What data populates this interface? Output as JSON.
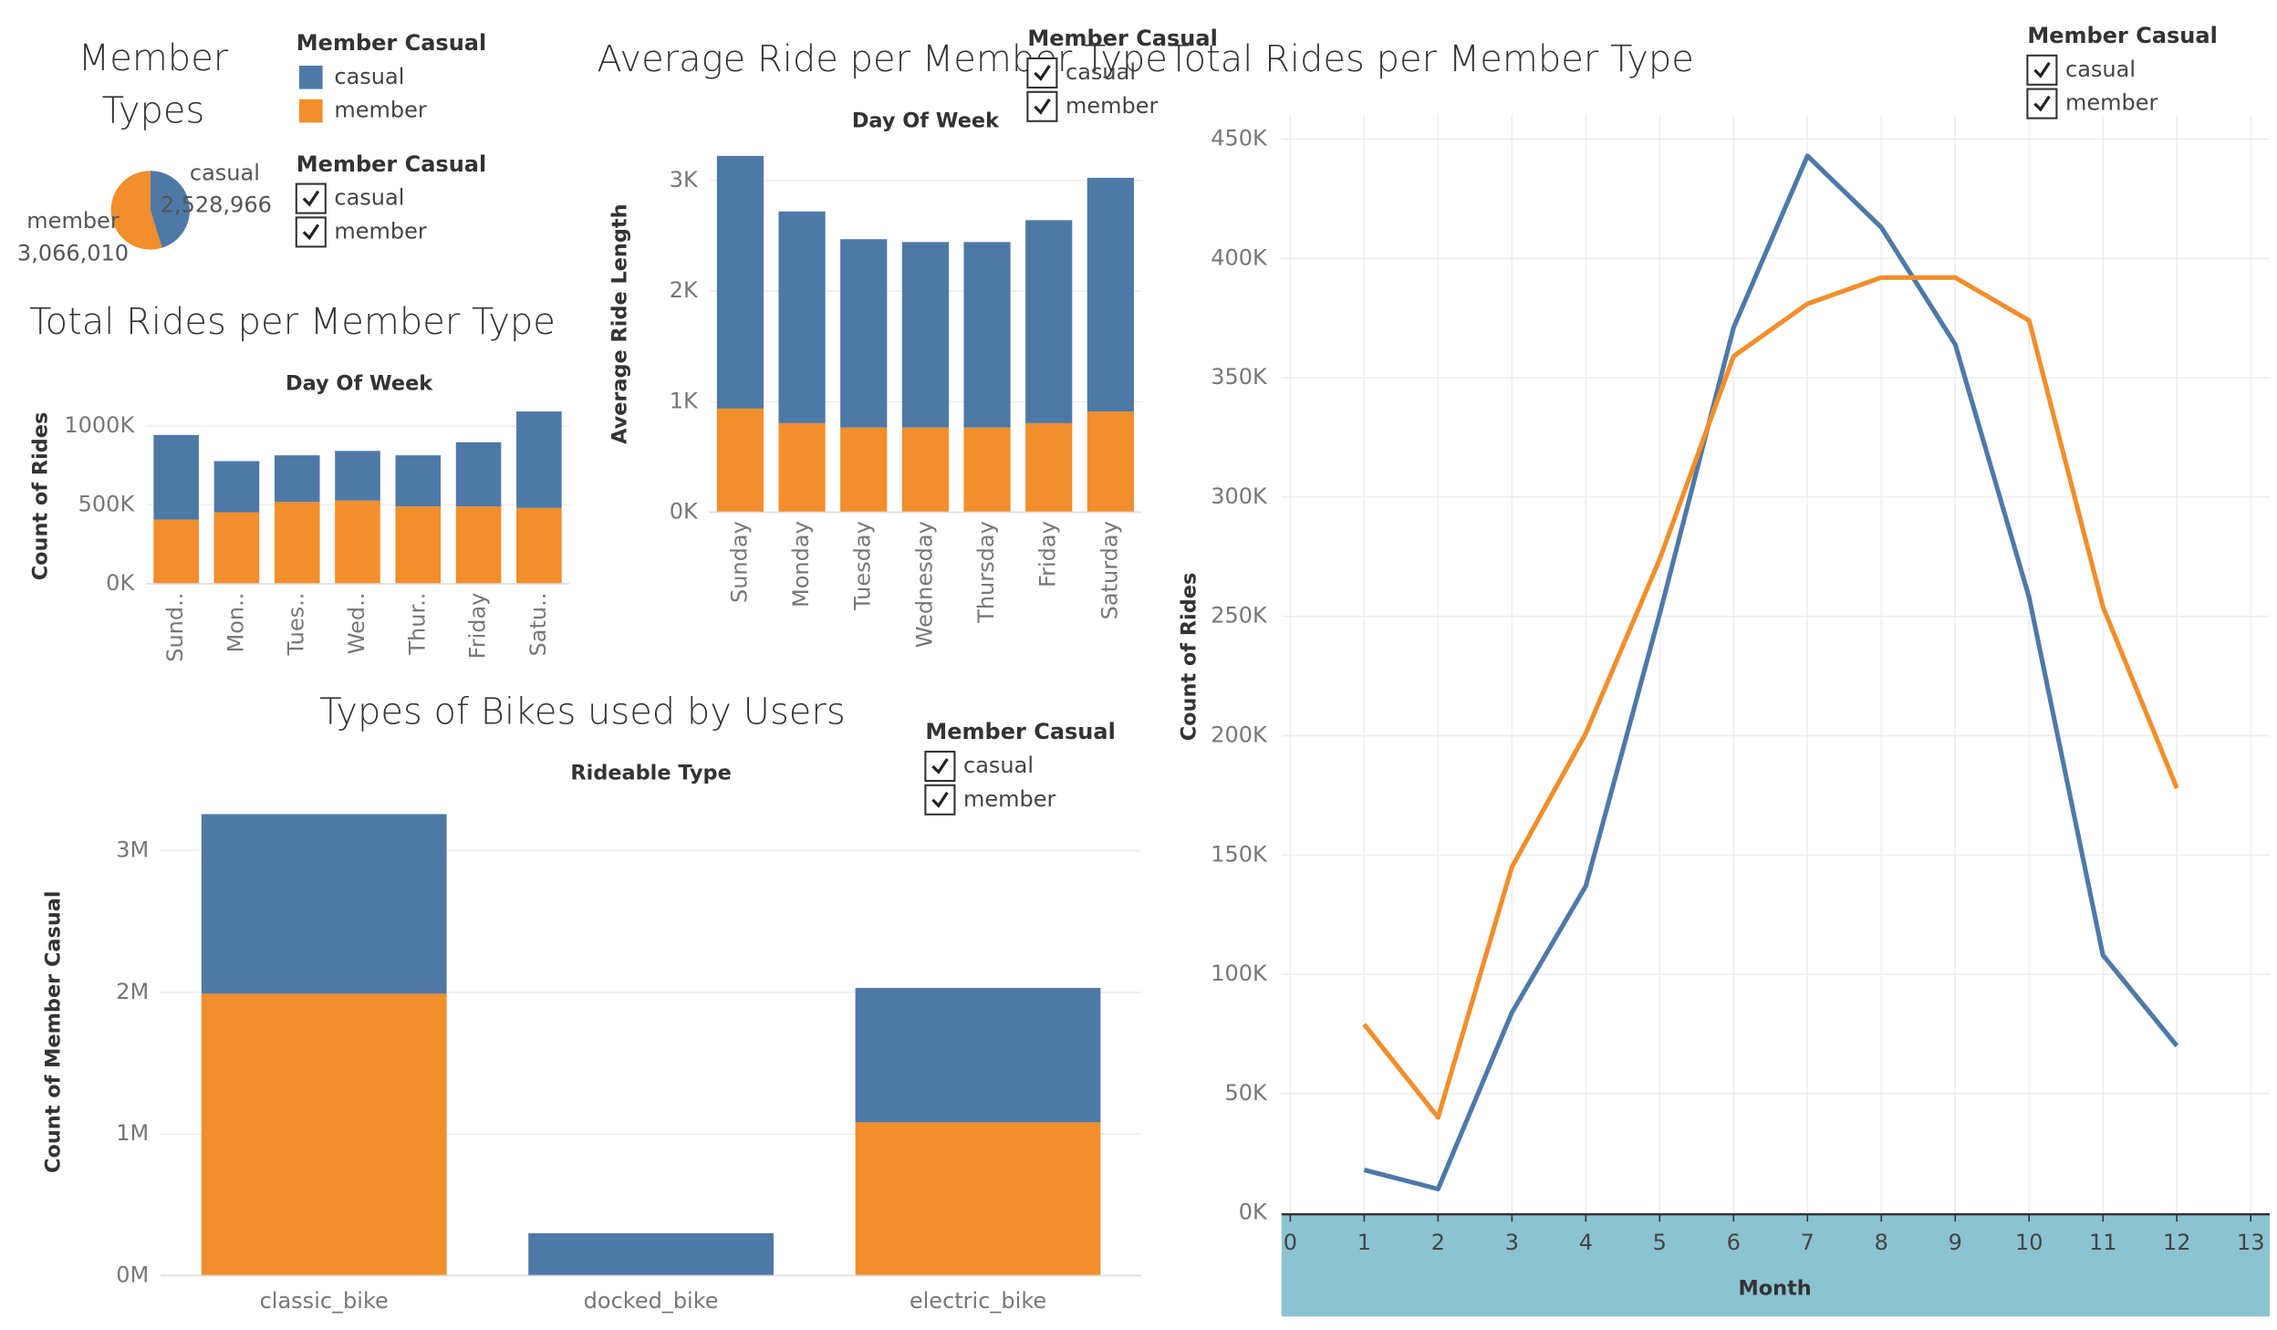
{
  "chart_data": [
    {
      "type": "pie",
      "title": "Member Types",
      "legend_title": "Member Casual",
      "categories": [
        "casual",
        "member"
      ],
      "values": [
        2528966,
        3066010
      ],
      "value_labels": [
        "2,528,966",
        "3,066,010"
      ],
      "colors": [
        "#4e79a7",
        "#f28e2b"
      ]
    },
    {
      "type": "bar",
      "stacked": true,
      "title": "Total Rides per Member Type",
      "x_title": "Day Of Week",
      "y_title": "Count of Rides",
      "legend_title": "Member Casual",
      "categories": [
        "Sund..",
        "Mon..",
        "Tues..",
        "Wed..",
        "Thur..",
        "Friday",
        "Satu.."
      ],
      "series": [
        {
          "name": "casual",
          "color": "#4e79a7",
          "values": [
            537000,
            324000,
            296000,
            315000,
            324000,
            407000,
            612000
          ]
        },
        {
          "name": "member",
          "color": "#f28e2b",
          "values": [
            407000,
            454000,
            519000,
            528000,
            491000,
            491000,
            481000
          ]
        }
      ],
      "ylim": [
        0,
        1120000
      ],
      "yticks": [
        {
          "value": 0,
          "label": "0K"
        },
        {
          "value": 500000,
          "label": "500K"
        },
        {
          "value": 1000000,
          "label": "1000K"
        }
      ],
      "grid": true
    },
    {
      "type": "bar",
      "stacked": true,
      "title": "Average Ride per Member Type",
      "x_title": "Day Of Week",
      "y_title": "Average Ride Length",
      "legend_title": "Member Casual",
      "categories": [
        "Sunday",
        "Monday",
        "Tuesday",
        "Wednesday",
        "Thursday",
        "Friday",
        "Saturday"
      ],
      "series": [
        {
          "name": "casual",
          "color": "#4e79a7",
          "values": [
            2285,
            1915,
            1704,
            1678,
            1678,
            1836,
            2114
          ]
        },
        {
          "name": "member",
          "color": "#f28e2b",
          "values": [
            938,
            806,
            766,
            766,
            766,
            806,
            911
          ]
        }
      ],
      "ylim": [
        0,
        3300
      ],
      "yticks": [
        {
          "value": 0,
          "label": "0K"
        },
        {
          "value": 1000,
          "label": "1K"
        },
        {
          "value": 2000,
          "label": "2K"
        },
        {
          "value": 3000,
          "label": "3K"
        }
      ],
      "grid": true
    },
    {
      "type": "bar",
      "stacked": true,
      "title": "Types of Bikes used by Users",
      "x_title": "Rideable Type",
      "y_title": "Count of Member Casual",
      "legend_title": "Member Casual",
      "categories": [
        "classic_bike",
        "docked_bike",
        "electric_bike"
      ],
      "series": [
        {
          "name": "casual",
          "color": "#4e79a7",
          "values": [
            1268000,
            299000,
            949000
          ]
        },
        {
          "name": "member",
          "color": "#f28e2b",
          "values": [
            1990000,
            0,
            1082000
          ]
        }
      ],
      "ylim": [
        0,
        3400000
      ],
      "yticks": [
        {
          "value": 0,
          "label": "0M"
        },
        {
          "value": 1000000,
          "label": "1M"
        },
        {
          "value": 2000000,
          "label": "2M"
        },
        {
          "value": 3000000,
          "label": "3M"
        }
      ],
      "grid": true
    },
    {
      "type": "line",
      "title": "Total Rides per Member Type",
      "x_title": "Month",
      "y_title": "Count of Rides",
      "legend_title": "Member Casual",
      "x": [
        1,
        2,
        3,
        4,
        5,
        6,
        7,
        8,
        9,
        10,
        11,
        12
      ],
      "series": [
        {
          "name": "casual",
          "color": "#4e79a7",
          "values": [
            18000,
            10000,
            84000,
            137000,
            251000,
            371000,
            443000,
            413000,
            364000,
            258000,
            108000,
            70000
          ]
        },
        {
          "name": "member",
          "color": "#f28e2b",
          "values": [
            79000,
            40000,
            145000,
            201000,
            274000,
            359000,
            381000,
            392000,
            392000,
            374000,
            254000,
            178000
          ]
        }
      ],
      "xlim": [
        0,
        13
      ],
      "xticks": [
        0,
        1,
        2,
        3,
        4,
        5,
        6,
        7,
        8,
        9,
        10,
        11,
        12,
        13
      ],
      "ylim": [
        0,
        460000
      ],
      "yticks": [
        {
          "value": 0,
          "label": "0K"
        },
        {
          "value": 50000,
          "label": "50K"
        },
        {
          "value": 100000,
          "label": "100K"
        },
        {
          "value": 150000,
          "label": "150K"
        },
        {
          "value": 200000,
          "label": "200K"
        },
        {
          "value": 250000,
          "label": "250K"
        },
        {
          "value": 300000,
          "label": "300K"
        },
        {
          "value": 350000,
          "label": "350K"
        },
        {
          "value": 400000,
          "label": "400K"
        },
        {
          "value": 450000,
          "label": "450K"
        }
      ],
      "grid": true
    }
  ]
}
